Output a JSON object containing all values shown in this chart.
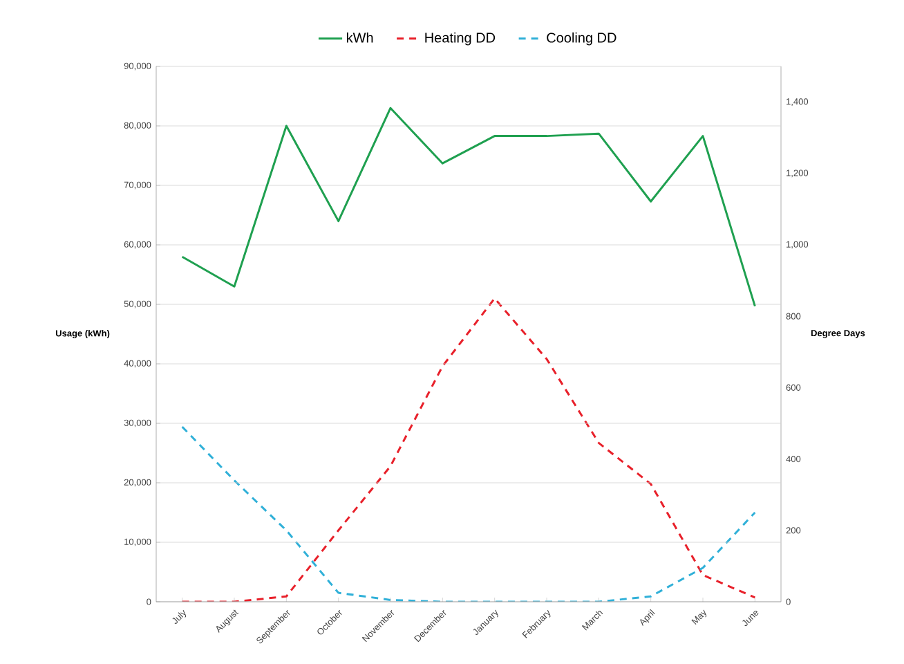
{
  "chart_data": {
    "type": "line",
    "xlabel": null,
    "ylabel": "Usage (kWh)",
    "y2label": "Degree Days",
    "categories": [
      "July",
      "August",
      "September",
      "October",
      "November",
      "December",
      "January",
      "February",
      "March",
      "April",
      "May",
      "June"
    ],
    "series": [
      {
        "name": "kWh",
        "color": "#1fa050",
        "line_style": "solid",
        "values": [
          58000,
          53000,
          80000,
          64000,
          83000,
          73700,
          78300,
          78300,
          78700,
          67300,
          78300,
          49700
        ]
      },
      {
        "name": "Heating DD",
        "color": "#e8202a",
        "line_style": "dashed",
        "axis": "y2",
        "values": [
          0,
          0,
          15,
          200,
          380,
          660,
          850,
          680,
          445,
          330,
          75,
          12
        ]
      },
      {
        "name": "Cooling DD",
        "color": "#30b0d8",
        "line_style": "dashed",
        "axis": "y2",
        "values": [
          490,
          340,
          200,
          25,
          5,
          0,
          0,
          0,
          0,
          15,
          95,
          250
        ]
      }
    ],
    "ylim": [
      0,
      90000
    ],
    "yticks": [
      {
        "value": 0,
        "label": "0"
      },
      {
        "value": 10000,
        "label": "10,000"
      },
      {
        "value": 20000,
        "label": "20,000"
      },
      {
        "value": 30000,
        "label": "30,000"
      },
      {
        "value": 40000,
        "label": "40,000"
      },
      {
        "value": 50000,
        "label": "50,000"
      },
      {
        "value": 60000,
        "label": "60,000"
      },
      {
        "value": 70000,
        "label": "70,000"
      },
      {
        "value": 80000,
        "label": "80,000"
      },
      {
        "value": 90000,
        "label": "90,000"
      }
    ],
    "y2lim": [
      0,
      1500
    ],
    "y2ticks": [
      {
        "value": 0,
        "label": "0"
      },
      {
        "value": 200,
        "label": "200"
      },
      {
        "value": 400,
        "label": "400"
      },
      {
        "value": 600,
        "label": "600"
      },
      {
        "value": 800,
        "label": "800"
      },
      {
        "value": 1000,
        "label": "1,000"
      },
      {
        "value": 1200,
        "label": "1,200"
      },
      {
        "value": 1400,
        "label": "1,400"
      }
    ],
    "grid": "y",
    "legend": "top",
    "marker": "none"
  }
}
